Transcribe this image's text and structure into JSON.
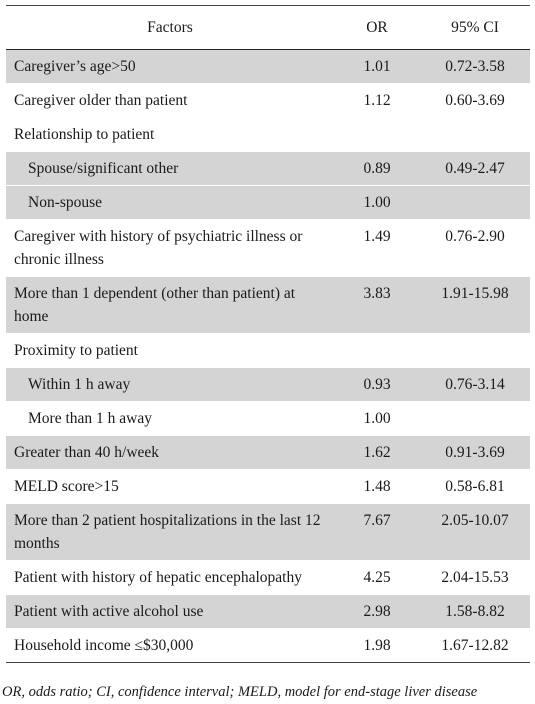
{
  "header": {
    "factors": "Factors",
    "or": "OR",
    "ci": "95% CI"
  },
  "rows": [
    {
      "factor": "Caregiver’s age>50",
      "or": "1.01",
      "ci": "0.72-3.58",
      "shaded": true,
      "indent": false
    },
    {
      "factor": "Caregiver older than patient",
      "or": "1.12",
      "ci": "0.60-3.69",
      "shaded": false,
      "indent": false
    },
    {
      "factor": "Relationship to patient",
      "or": "",
      "ci": "",
      "shaded": false,
      "indent": false
    },
    {
      "factor": "Spouse/significant other",
      "or": "0.89",
      "ci": "0.49-2.47",
      "shaded": true,
      "indent": true
    },
    {
      "factor": "Non-spouse",
      "or": "1.00",
      "ci": "",
      "shaded": true,
      "indent": true
    },
    {
      "factor": "Caregiver with history of psychiatric illness or chronic illness",
      "or": "1.49",
      "ci": "0.76-2.90",
      "shaded": false,
      "indent": false
    },
    {
      "factor": "More than 1 dependent (other than patient) at home",
      "or": "3.83",
      "ci": "1.91-15.98",
      "shaded": true,
      "indent": false
    },
    {
      "factor": "Proximity to patient",
      "or": "",
      "ci": "",
      "shaded": false,
      "indent": false
    },
    {
      "factor": "Within 1 h away",
      "or": "0.93",
      "ci": "0.76-3.14",
      "shaded": true,
      "indent": true
    },
    {
      "factor": "More than 1 h away",
      "or": "1.00",
      "ci": "",
      "shaded": false,
      "indent": true
    },
    {
      "factor": "Greater than 40 h/week",
      "or": "1.62",
      "ci": "0.91-3.69",
      "shaded": true,
      "indent": false
    },
    {
      "factor": "MELD score>15",
      "or": "1.48",
      "ci": "0.58-6.81",
      "shaded": false,
      "indent": false
    },
    {
      "factor": "More than 2 patient hospitalizations in the last 12 months",
      "or": "7.67",
      "ci": "2.05-10.07",
      "shaded": true,
      "indent": false
    },
    {
      "factor": "Patient with history of hepatic encephalopathy",
      "or": "4.25",
      "ci": "2.04-15.53",
      "shaded": false,
      "indent": false
    },
    {
      "factor": "Patient with active alcohol use",
      "or": "2.98",
      "ci": "1.58-8.82",
      "shaded": true,
      "indent": false
    },
    {
      "factor": "Household income ≤$30,000",
      "or": "1.98",
      "ci": "1.67-12.82",
      "shaded": false,
      "indent": false
    }
  ],
  "footnote": "OR, odds ratio; CI, confidence interval; MELD, model for end-stage liver disease"
}
